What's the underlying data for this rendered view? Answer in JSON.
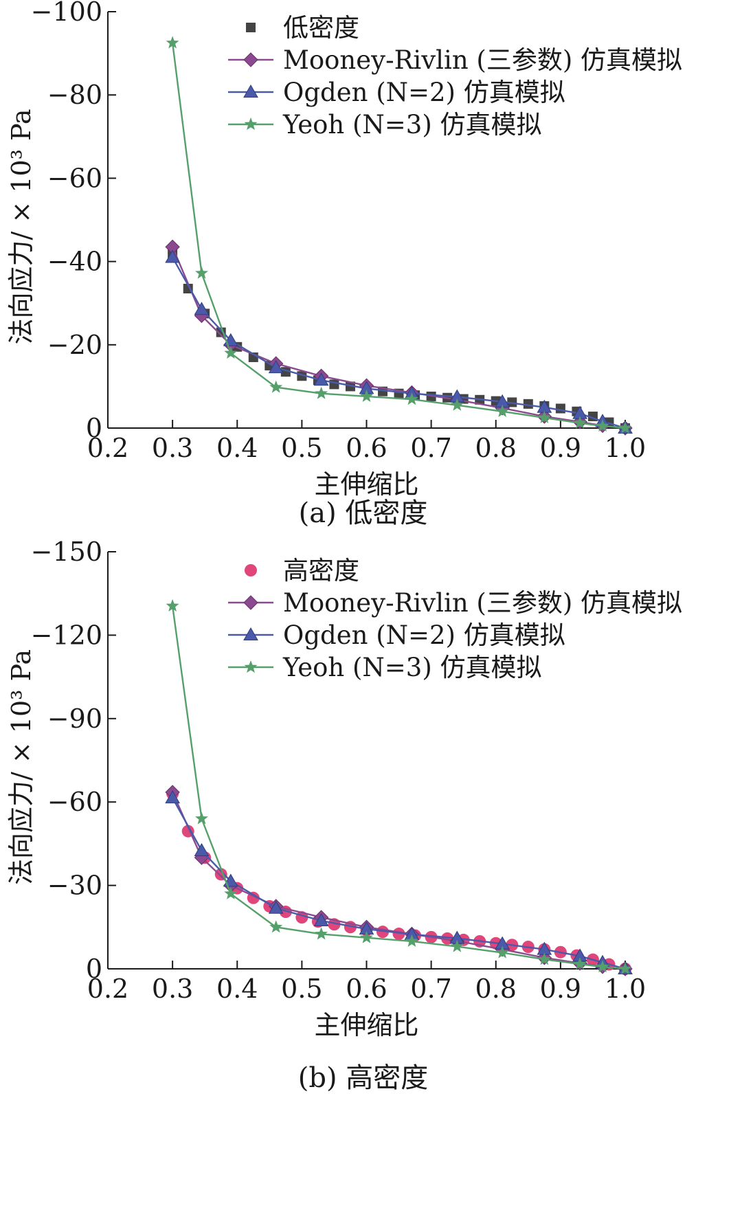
{
  "chart_data": [
    {
      "type": "line",
      "caption": "(a) 低密度",
      "xlabel": "主伸缩比",
      "ylabel": "法向应力/ × 10³ Pa",
      "xlim": [
        0.2,
        1.0
      ],
      "ylim": [
        0,
        -100
      ],
      "xticks": [
        0.2,
        0.3,
        0.4,
        0.5,
        0.6,
        0.7,
        0.8,
        0.9,
        1.0
      ],
      "xtick_labels": [
        "0.2",
        "0.3",
        "0.4",
        "0.5",
        "0.6",
        "0.7",
        "0.8",
        "0.9",
        "1.0"
      ],
      "yticks": [
        0,
        -20,
        -40,
        -60,
        -80,
        -100
      ],
      "ytick_labels": [
        "0",
        "−20",
        "−40",
        "−60",
        "−80",
        "−100"
      ],
      "legend_position": "top-right",
      "series": [
        {
          "name": "低密度",
          "kind": "scatter",
          "marker": "square",
          "color": "#444444",
          "x": [
            0.3,
            0.324,
            0.35,
            0.375,
            0.4,
            0.425,
            0.45,
            0.475,
            0.5,
            0.525,
            0.55,
            0.575,
            0.6,
            0.625,
            0.65,
            0.675,
            0.7,
            0.725,
            0.75,
            0.775,
            0.8,
            0.825,
            0.85,
            0.875,
            0.9,
            0.925,
            0.95,
            0.975,
            1.0
          ],
          "y": [
            -42,
            -33.5,
            -27.5,
            -23,
            -19.5,
            -17,
            -15,
            -13.5,
            -12.5,
            -11.5,
            -10.5,
            -10,
            -9.3,
            -8.8,
            -8.3,
            -7.9,
            -7.6,
            -7.3,
            -7,
            -6.8,
            -6.5,
            -6.2,
            -5.8,
            -5.3,
            -4.7,
            -4,
            -2.8,
            -1.4,
            0
          ]
        },
        {
          "name": "Mooney-Rivlin (三参数) 仿真模拟",
          "kind": "line",
          "marker": "diamond",
          "color": "#8b4a8f",
          "x": [
            0.3,
            0.345,
            0.39,
            0.46,
            0.53,
            0.6,
            0.67,
            0.74,
            0.81,
            0.875,
            0.93,
            0.965,
            1.0
          ],
          "y": [
            -43.5,
            -27,
            -20,
            -15.5,
            -12.5,
            -10.2,
            -8.5,
            -6.8,
            -4.8,
            -2.8,
            -1.5,
            -0.6,
            0
          ]
        },
        {
          "name": "Ogden (N=2) 仿真模拟",
          "kind": "line",
          "marker": "triangle",
          "color": "#4a5aa8",
          "x": [
            0.3,
            0.345,
            0.39,
            0.46,
            0.53,
            0.6,
            0.67,
            0.74,
            0.81,
            0.875,
            0.93,
            0.965,
            1.0
          ],
          "y": [
            -41,
            -28.5,
            -21,
            -14.5,
            -11.5,
            -9.5,
            -8.3,
            -7.5,
            -6.3,
            -5,
            -3.5,
            -1.6,
            0
          ]
        },
        {
          "name": "Yeoh (N=3) 仿真模拟",
          "kind": "line",
          "marker": "star",
          "color": "#55a06a",
          "x": [
            0.3,
            0.345,
            0.39,
            0.46,
            0.53,
            0.6,
            0.67,
            0.74,
            0.81,
            0.875,
            0.93,
            0.965,
            1.0
          ],
          "y": [
            -92.5,
            -37.2,
            -18,
            -9.8,
            -8.3,
            -7.6,
            -6.9,
            -5.5,
            -4,
            -2.5,
            -1.2,
            -0.5,
            0
          ]
        }
      ]
    },
    {
      "type": "line",
      "caption": "(b) 高密度",
      "xlabel": "主伸缩比",
      "ylabel": "法向应力/ × 10³ Pa",
      "xlim": [
        0.2,
        1.0
      ],
      "ylim": [
        0,
        -150
      ],
      "xticks": [
        0.2,
        0.3,
        0.4,
        0.5,
        0.6,
        0.7,
        0.8,
        0.9,
        1.0
      ],
      "xtick_labels": [
        "0.2",
        "0.3",
        "0.4",
        "0.5",
        "0.6",
        "0.7",
        "0.8",
        "0.9",
        "1.0"
      ],
      "yticks": [
        0,
        -30,
        -60,
        -90,
        -120,
        -150
      ],
      "ytick_labels": [
        "0",
        "−30",
        "−60",
        "−90",
        "−120",
        "−150"
      ],
      "legend_position": "top-right",
      "series": [
        {
          "name": "高密度",
          "kind": "scatter",
          "marker": "circle",
          "color": "#e0457b",
          "x": [
            0.3,
            0.324,
            0.35,
            0.375,
            0.4,
            0.425,
            0.45,
            0.475,
            0.5,
            0.525,
            0.55,
            0.575,
            0.6,
            0.625,
            0.65,
            0.675,
            0.7,
            0.725,
            0.75,
            0.775,
            0.8,
            0.825,
            0.85,
            0.875,
            0.9,
            0.925,
            0.95,
            0.975,
            1.0
          ],
          "y": [
            -63,
            -49.5,
            -40,
            -34,
            -29,
            -25.5,
            -22.5,
            -20.5,
            -18.5,
            -17,
            -16,
            -15,
            -14,
            -13.3,
            -12.6,
            -12,
            -11.4,
            -10.9,
            -10.4,
            -9.9,
            -9.2,
            -8.6,
            -7.9,
            -7,
            -6,
            -4.8,
            -3.3,
            -1.6,
            0
          ]
        },
        {
          "name": "Mooney-Rivlin (三参数) 仿真模拟",
          "kind": "line",
          "marker": "diamond",
          "color": "#8b4a8f",
          "x": [
            0.3,
            0.345,
            0.39,
            0.46,
            0.53,
            0.6,
            0.67,
            0.74,
            0.81,
            0.875,
            0.93,
            0.965,
            1.0
          ],
          "y": [
            -63.5,
            -40,
            -30,
            -22.5,
            -18.5,
            -15,
            -12.5,
            -10,
            -7,
            -4,
            -2,
            -0.8,
            0
          ]
        },
        {
          "name": "Ogden (N=2) 仿真模拟",
          "kind": "line",
          "marker": "triangle",
          "color": "#4a5aa8",
          "x": [
            0.3,
            0.345,
            0.39,
            0.46,
            0.53,
            0.6,
            0.67,
            0.74,
            0.81,
            0.875,
            0.93,
            0.965,
            1.0
          ],
          "y": [
            -61.5,
            -42.5,
            -31.5,
            -21.8,
            -17.3,
            -14.3,
            -12.4,
            -11,
            -9,
            -7,
            -4.6,
            -2.3,
            0
          ]
        },
        {
          "name": "Yeoh (N=3) 仿真模拟",
          "kind": "line",
          "marker": "star",
          "color": "#55a06a",
          "x": [
            0.3,
            0.345,
            0.39,
            0.46,
            0.53,
            0.6,
            0.67,
            0.74,
            0.81,
            0.875,
            0.93,
            0.965,
            1.0
          ],
          "y": [
            -130.5,
            -54,
            -27,
            -15,
            -12.5,
            -11.2,
            -9.9,
            -8,
            -5.8,
            -3.4,
            -1.7,
            -0.7,
            0
          ]
        }
      ]
    }
  ]
}
